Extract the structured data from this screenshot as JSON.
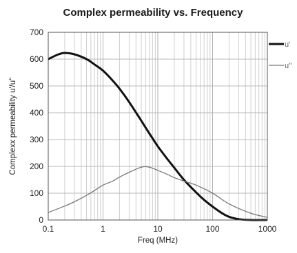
{
  "chart_data": {
    "type": "line",
    "title": "Complex permeability vs. Frequency",
    "xlabel": "Freq (MHz)",
    "ylabel": "Complexx permeability u'/u''",
    "x_scale": "log",
    "xlim": [
      0.1,
      1000
    ],
    "ylim": [
      0,
      700
    ],
    "grid": true,
    "legend": "right",
    "x_ticks": [
      "0.1",
      "1",
      "10",
      "100",
      "1000"
    ],
    "y_ticks": [
      "0",
      "100",
      "200",
      "300",
      "400",
      "500",
      "600",
      "700"
    ],
    "series": [
      {
        "name": "u'",
        "color": "#111111",
        "x": [
          0.1,
          0.15,
          0.2,
          0.3,
          0.5,
          0.7,
          1,
          1.5,
          2,
          3,
          5,
          7,
          10,
          15,
          20,
          30,
          50,
          70,
          100,
          150,
          200,
          300,
          500,
          1000
        ],
        "y": [
          600,
          617,
          623,
          618,
          600,
          580,
          557,
          520,
          490,
          440,
          370,
          323,
          275,
          227,
          195,
          150,
          103,
          75,
          50,
          25,
          12,
          3,
          0,
          0
        ]
      },
      {
        "name": "u''",
        "color": "#777777",
        "x": [
          0.1,
          0.2,
          0.3,
          0.5,
          0.7,
          1,
          1.5,
          2,
          3,
          5,
          7,
          10,
          15,
          20,
          30,
          50,
          100,
          200,
          500,
          1000
        ],
        "y": [
          28,
          52,
          68,
          92,
          110,
          130,
          145,
          160,
          178,
          197,
          197,
          185,
          170,
          158,
          145,
          130,
          100,
          60,
          25,
          10
        ]
      }
    ]
  }
}
